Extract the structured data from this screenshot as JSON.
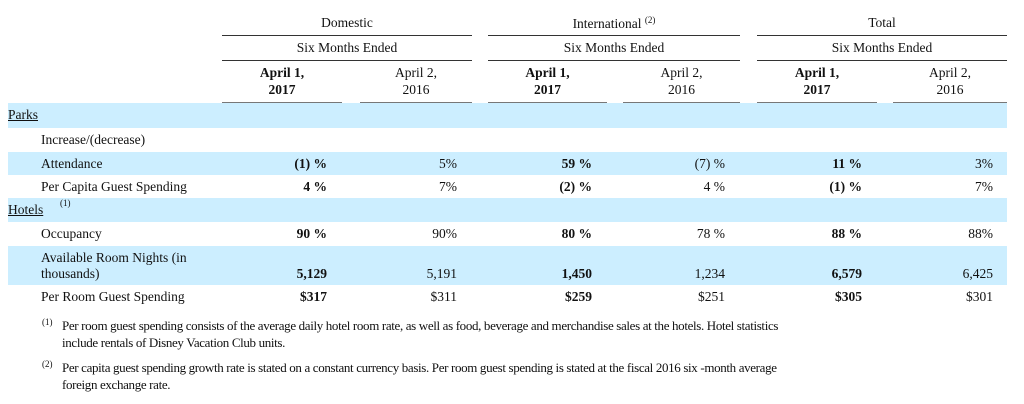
{
  "header": {
    "groups": [
      {
        "label": "Domestic",
        "note": ""
      },
      {
        "label": "International",
        "note": "(2)"
      },
      {
        "label": "Total",
        "note": ""
      }
    ],
    "period": "Six Months Ended",
    "col_a": [
      "April 1,",
      "2017"
    ],
    "col_b": [
      "April 2,",
      "2016"
    ]
  },
  "rows": [
    {
      "label": "Parks",
      "type": "section",
      "values": []
    },
    {
      "label": "Increase/(decrease)",
      "type": "sub",
      "values": []
    },
    {
      "label": "Attendance",
      "type": "data",
      "values": [
        "(1) %",
        "5%",
        "59 %",
        "(7) %",
        "11 %",
        "3%"
      ]
    },
    {
      "label": "Per Capita Guest Spending",
      "type": "data",
      "values": [
        "4 %",
        "7%",
        "(2) %",
        "4 %",
        "(1) %",
        "7%"
      ]
    },
    {
      "label": "Hotels",
      "note": "(1)",
      "type": "section",
      "values": []
    },
    {
      "label": "Occupancy",
      "type": "data",
      "values": [
        "90 %",
        "90%",
        "80 %",
        "78 %",
        "88 %",
        "88%"
      ]
    },
    {
      "label": "Available Room Nights (in",
      "label2": "thousands)",
      "type": "data2",
      "values": [
        "5,129",
        "5,191",
        "1,450",
        "1,234",
        "6,579",
        "6,425"
      ]
    },
    {
      "label": "Per Room Guest Spending",
      "type": "data",
      "values": [
        "$317",
        "$311",
        "$259",
        "$251",
        "$305",
        "$301"
      ]
    }
  ],
  "footnotes": [
    {
      "mark": "(1)",
      "line1": "Per room guest spending consists of the average daily hotel room rate, as well as food, beverage and merchandise sales at the hotels. Hotel statistics",
      "line2": "include rentals of Disney Vacation Club units."
    },
    {
      "mark": "(2)",
      "line1": "Per capita guest spending growth rate is stated on a constant currency basis. Per room guest spending is stated at the fiscal 2016 six -month average",
      "line2": "foreign exchange rate."
    }
  ],
  "colors": {
    "band": "#cceeff"
  }
}
